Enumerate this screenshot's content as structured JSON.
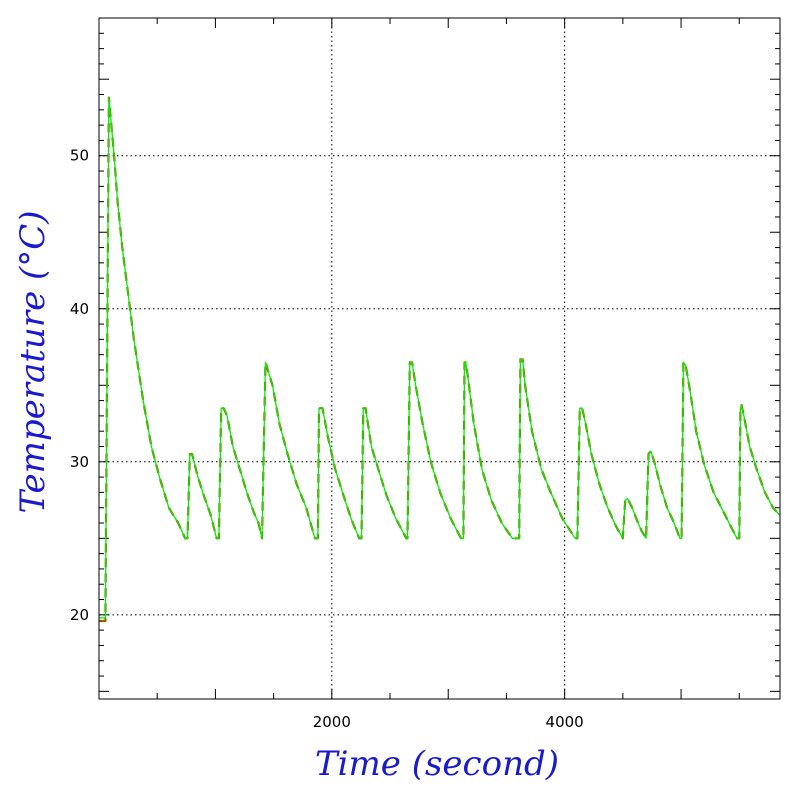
{
  "chart_data": {
    "type": "line",
    "title": "",
    "xlabel": "Time (second)",
    "ylabel": "Temperature (°C)",
    "xlim": [
      0,
      5850
    ],
    "ylim": [
      14.5,
      59
    ],
    "xticks": [
      2000,
      4000
    ],
    "xtick_labels": [
      "2000",
      "4000"
    ],
    "yticks": [
      20,
      30,
      40,
      50
    ],
    "ytick_labels": [
      "20",
      "30",
      "40",
      "50"
    ],
    "grid": true,
    "legend": "none",
    "colors": {
      "axis_title": "#1a1acc",
      "grid": "#000000",
      "frame": "#000000"
    },
    "series": [
      {
        "color": "#a05a00",
        "dash": "dashed",
        "x": [
          0,
          55,
          85,
          130,
          160,
          200,
          250,
          300,
          380,
          450,
          520,
          600,
          680,
          740,
          760,
          780,
          800,
          850,
          900,
          960,
          1010,
          1030,
          1050,
          1070,
          1100,
          1150,
          1210,
          1270,
          1330,
          1370,
          1400,
          1430,
          1490,
          1550,
          1620,
          1700,
          1780,
          1855,
          1880,
          1890,
          1920,
          1970,
          2030,
          2100,
          2170,
          2235,
          2255,
          2270,
          2290,
          2340,
          2400,
          2470,
          2550,
          2640,
          2650,
          2670,
          2690,
          2720,
          2780,
          2850,
          2930,
          3020,
          3110,
          3130,
          3140,
          3150,
          3170,
          3220,
          3290,
          3370,
          3460,
          3550,
          3610,
          3620,
          3640,
          3660,
          3720,
          3800,
          3880,
          3980,
          4090,
          4110,
          4130,
          4150,
          4180,
          4230,
          4300,
          4370,
          4440,
          4500,
          4520,
          4540,
          4580,
          4620,
          4660,
          4700,
          4720,
          4740,
          4770,
          4820,
          4880,
          4940,
          4990,
          5005,
          5020,
          5040,
          5080,
          5130,
          5200,
          5280,
          5380,
          5480,
          5500,
          5510,
          5520,
          5540,
          5590,
          5650,
          5720,
          5790,
          5850
        ],
        "y": [
          19.6,
          19.6,
          53.8,
          50,
          47,
          44,
          41,
          38,
          34,
          31,
          29,
          27,
          26,
          25,
          25,
          30.5,
          30.5,
          29,
          27.8,
          26.5,
          25,
          25,
          33.5,
          33.5,
          33,
          31,
          29.5,
          28,
          26.7,
          26,
          25,
          36.5,
          35,
          32.5,
          30.5,
          28.5,
          27,
          25,
          25,
          33.5,
          33.5,
          31.5,
          29.5,
          27.8,
          26.2,
          25,
          25,
          33.5,
          33.5,
          31,
          29.5,
          27.8,
          26.3,
          25,
          25,
          36.5,
          36.5,
          35,
          32.5,
          30,
          28,
          26.3,
          25,
          25,
          36.5,
          36.5,
          35.5,
          32.5,
          29.5,
          27.5,
          26,
          25,
          25,
          36.7,
          36.7,
          35,
          32,
          29.5,
          28,
          26.3,
          25,
          25,
          33.5,
          33.5,
          32.5,
          30.5,
          28.5,
          27,
          25.8,
          25,
          27.5,
          27.6,
          27,
          26.2,
          25.5,
          25,
          30.5,
          30.7,
          30,
          28.5,
          27,
          26,
          25,
          25,
          36.5,
          36.3,
          34.5,
          32,
          29.8,
          28,
          26.5,
          25,
          25,
          33.5,
          33.7,
          33,
          31,
          29.5,
          28,
          27,
          26.5
        ]
      },
      {
        "color": "#00ee00",
        "dash": "solid",
        "x": [
          0,
          55,
          85,
          130,
          160,
          200,
          250,
          300,
          380,
          450,
          520,
          600,
          680,
          740,
          760,
          780,
          800,
          850,
          900,
          960,
          1010,
          1030,
          1050,
          1070,
          1100,
          1150,
          1210,
          1270,
          1330,
          1370,
          1400,
          1430,
          1490,
          1550,
          1620,
          1700,
          1780,
          1855,
          1880,
          1890,
          1920,
          1970,
          2030,
          2100,
          2170,
          2235,
          2255,
          2270,
          2290,
          2340,
          2400,
          2470,
          2550,
          2640,
          2650,
          2670,
          2690,
          2720,
          2780,
          2850,
          2930,
          3020,
          3110,
          3130,
          3140,
          3150,
          3170,
          3220,
          3290,
          3370,
          3460,
          3550,
          3610,
          3620,
          3640,
          3660,
          3720,
          3800,
          3880,
          3980,
          4090,
          4110,
          4130,
          4150,
          4180,
          4230,
          4300,
          4370,
          4440,
          4500,
          4520,
          4540,
          4580,
          4620,
          4660,
          4700,
          4720,
          4740,
          4770,
          4820,
          4880,
          4940,
          4990,
          5005,
          5020,
          5040,
          5080,
          5130,
          5200,
          5280,
          5380,
          5480,
          5500,
          5510,
          5520,
          5540,
          5590,
          5650,
          5720,
          5790,
          5850
        ],
        "y": [
          19.8,
          19.8,
          53.8,
          50,
          47,
          44,
          41,
          38,
          34,
          31,
          29,
          27,
          26,
          25,
          25,
          30.5,
          30.5,
          29,
          27.8,
          26.5,
          25,
          25,
          33.5,
          33.5,
          33,
          31,
          29.5,
          28,
          26.7,
          26,
          25,
          36.5,
          35,
          32.5,
          30.5,
          28.5,
          27,
          25,
          25,
          33.5,
          33.5,
          31.5,
          29.5,
          27.8,
          26.2,
          25,
          25,
          33.5,
          33.5,
          31,
          29.5,
          27.8,
          26.3,
          25,
          25,
          36.5,
          36.5,
          35,
          32.5,
          30,
          28,
          26.3,
          25,
          25,
          36.5,
          36.5,
          35.5,
          32.5,
          29.5,
          27.5,
          26,
          25,
          25,
          36.7,
          36.7,
          35,
          32,
          29.5,
          28,
          26.3,
          25,
          25,
          33.5,
          33.5,
          32.5,
          30.5,
          28.5,
          27,
          25.8,
          25,
          27.5,
          27.6,
          27,
          26.2,
          25.5,
          25,
          30.5,
          30.7,
          30,
          28.5,
          27,
          26,
          25,
          25,
          36.5,
          36.3,
          34.5,
          32,
          29.8,
          28,
          26.5,
          25,
          25,
          33.5,
          33.7,
          33,
          31,
          29.5,
          28,
          27,
          26.5
        ]
      }
    ]
  }
}
